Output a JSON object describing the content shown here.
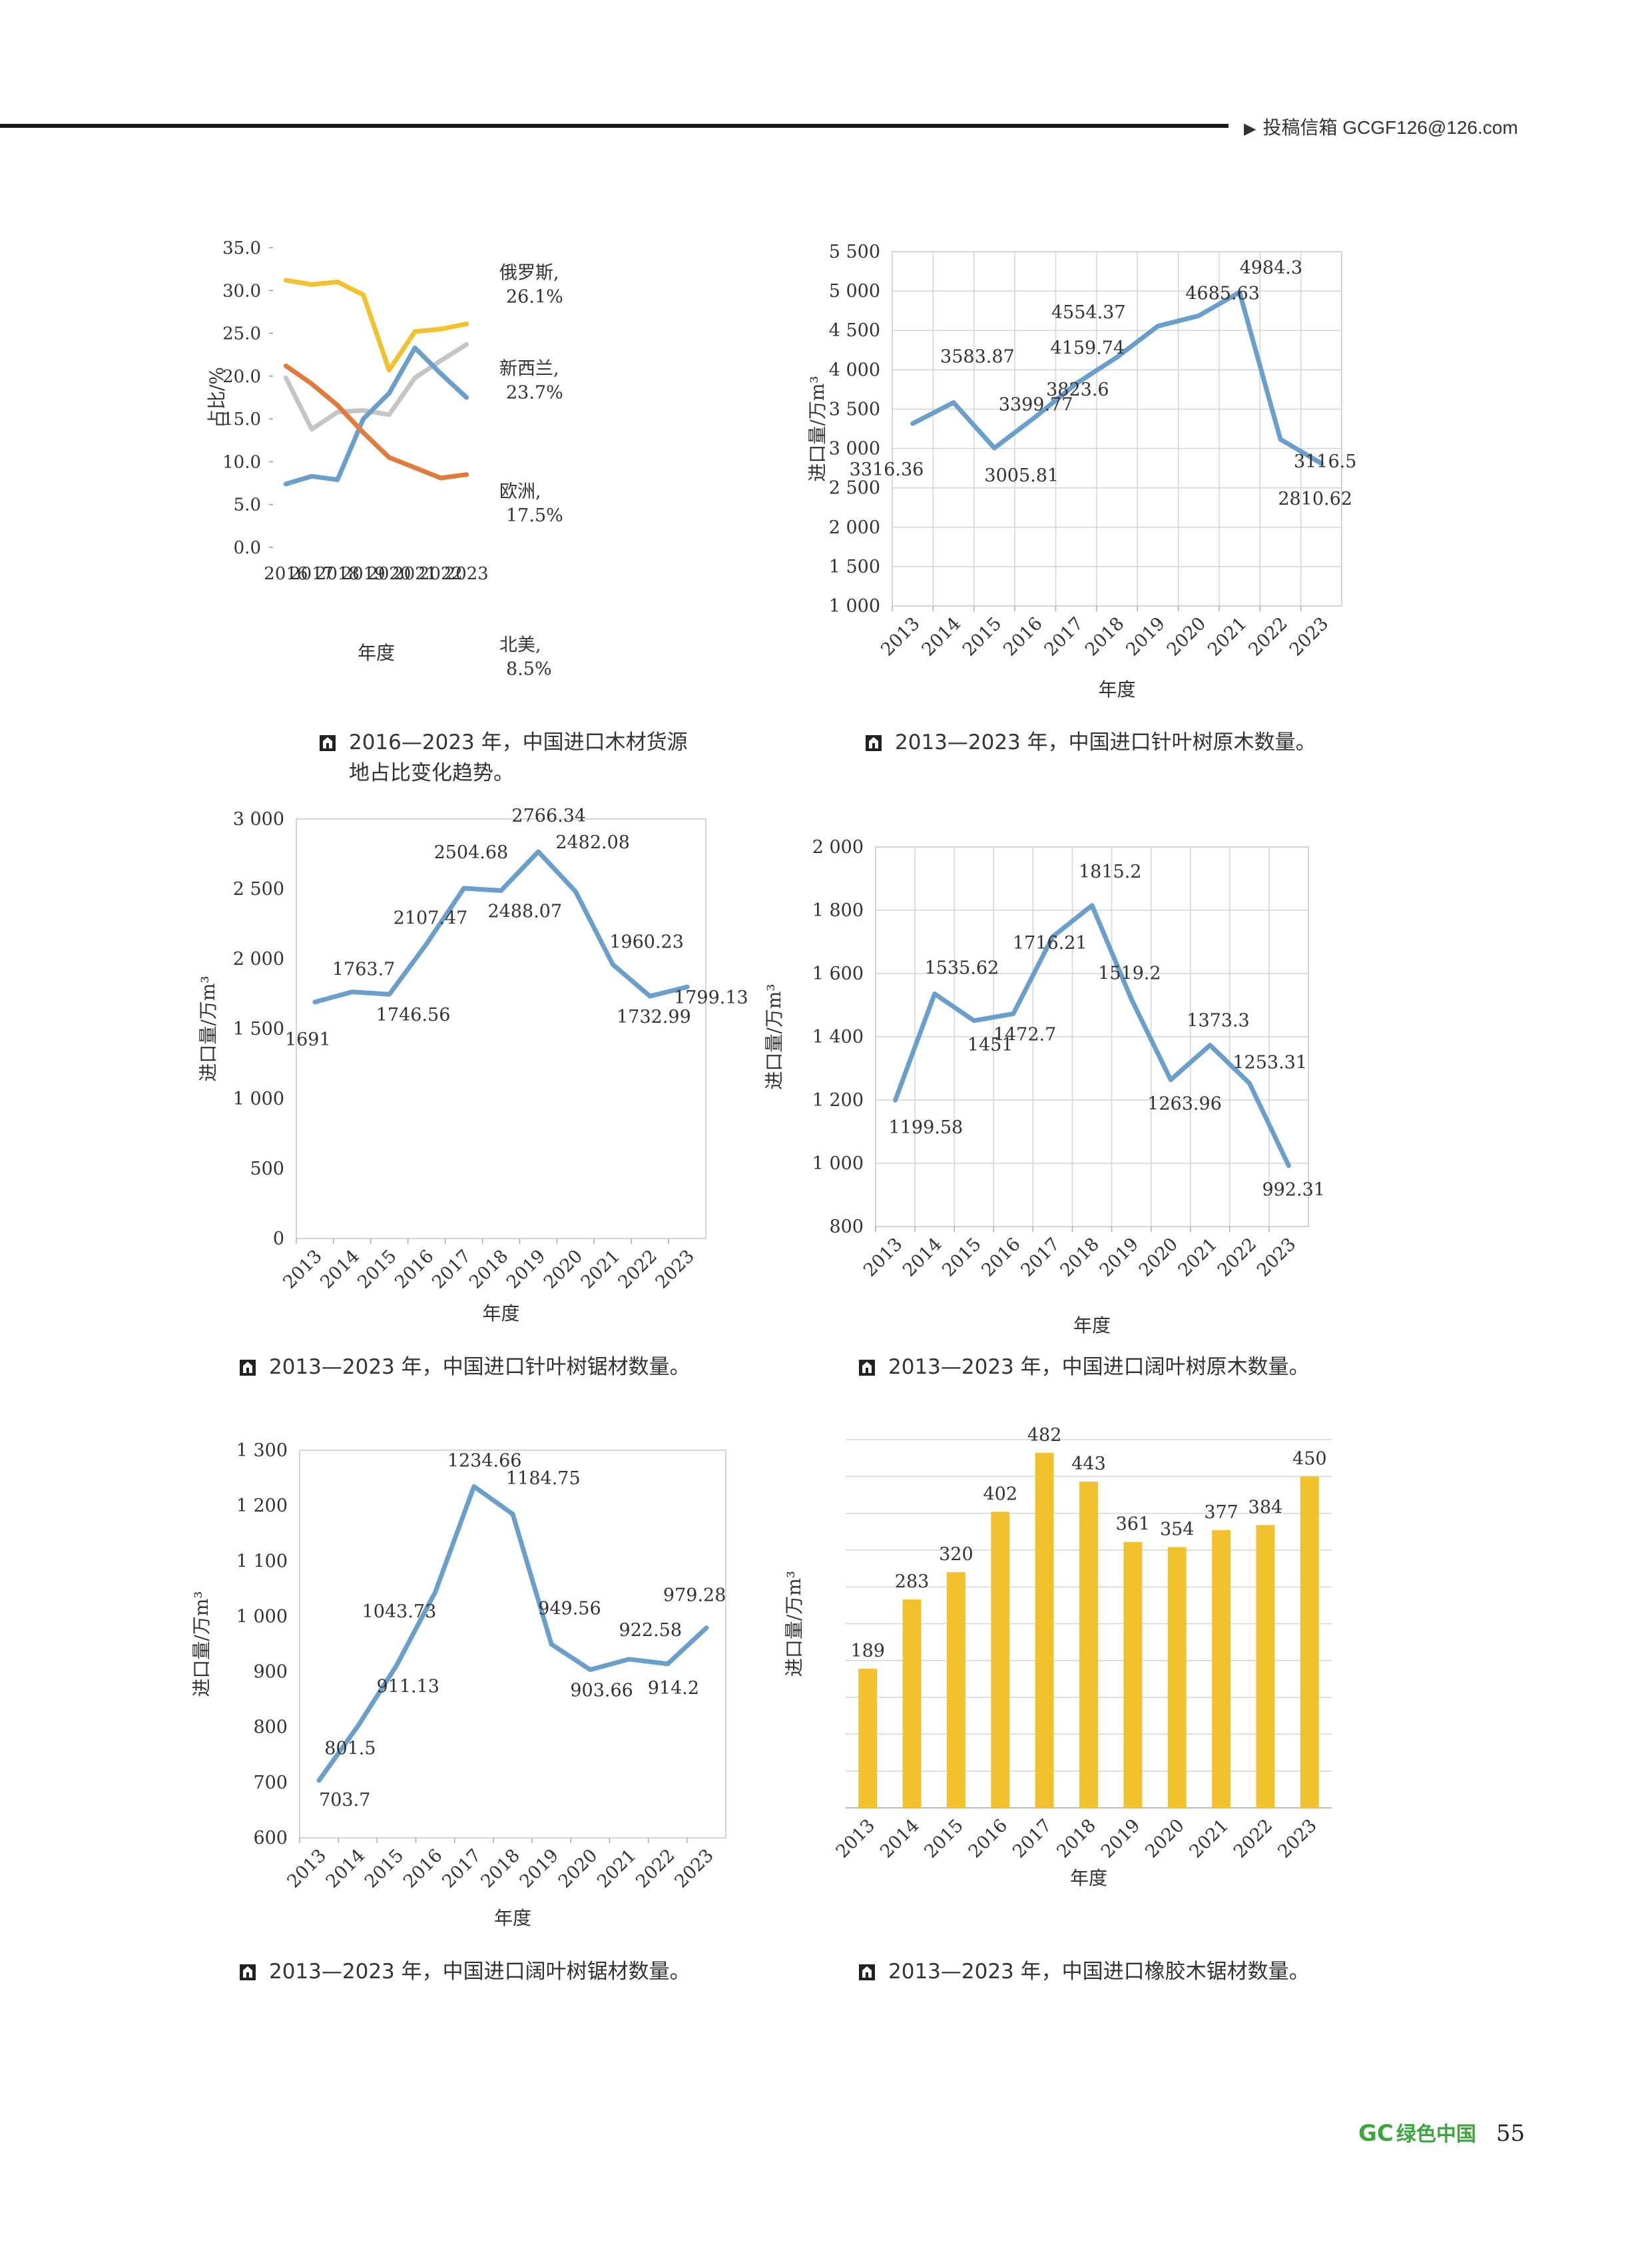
{
  "header": {
    "contact": "投稿信箱 GCGF126@126.com"
  },
  "footer": {
    "logo": "GC",
    "magazine": "绿色中国",
    "page_number": "55"
  },
  "colors": {
    "blue": "#6a9fcb",
    "orange": "#e07b3d",
    "gray": "#c5c5c5",
    "yellow": "#f2c12e",
    "bar": "#f2c12e",
    "grid": "#d4d4d4"
  },
  "chart_data": [
    {
      "type": "line",
      "caption_lines": [
        "2016—2023 年，中国进口木材货源",
        "地占比变化趋势。"
      ],
      "x": [
        "2016",
        "2017",
        "2018",
        "2019",
        "2020",
        "2021",
        "2022",
        "2023"
      ],
      "xlabel": "年度",
      "ylabel": "占比/%",
      "ylim": [
        0,
        35
      ],
      "ytick_step": 5,
      "ytick_labels": [
        "0.0",
        "5.0",
        "10.0",
        "15.0",
        "20.0",
        "25.0",
        "30.0",
        "35.0"
      ],
      "grid": false,
      "series": [
        {
          "name": "俄罗斯",
          "end_label": "26.1%",
          "color": "#f2c12e",
          "values": [
            31.2,
            30.7,
            31.0,
            29.5,
            20.7,
            25.2,
            25.5,
            26.1
          ]
        },
        {
          "name": "新西兰",
          "end_label": "23.7%",
          "color": "#c5c5c5",
          "values": [
            19.8,
            13.8,
            15.8,
            16.0,
            15.5,
            19.8,
            21.8,
            23.7
          ]
        },
        {
          "name": "欧洲",
          "end_label": "17.5%",
          "color": "#6a9fcb",
          "values": [
            7.4,
            8.3,
            7.9,
            15.0,
            18.0,
            23.3,
            20.3,
            17.5
          ]
        },
        {
          "name": "北美",
          "end_label": "8.5%",
          "color": "#e07b3d",
          "values": [
            21.2,
            19.1,
            16.6,
            13.4,
            10.5,
            9.3,
            8.1,
            8.5
          ]
        }
      ]
    },
    {
      "type": "line",
      "caption_lines": [
        "2013—2023 年，中国进口针叶树原木数量。"
      ],
      "x": [
        "2013",
        "2014",
        "2015",
        "2016",
        "2017",
        "2018",
        "2019",
        "2020",
        "2021",
        "2022",
        "2023"
      ],
      "xlabel": "年度",
      "ylabel": "进口量/万m³",
      "ylim": [
        1000,
        5500
      ],
      "ytick_step": 500,
      "ytick_labels": [
        "1 000",
        "1 500",
        "2 000",
        "2 500",
        "3 000",
        "3 500",
        "4 000",
        "4 500",
        "5 000",
        "5 500"
      ],
      "grid": true,
      "series": [
        {
          "color": "#6a9fcb",
          "values": [
            3316.36,
            3583.87,
            3005.81,
            3399.77,
            3823.6,
            4159.74,
            4554.37,
            4685.63,
            4984.3,
            3116.5,
            2810.62
          ],
          "labels": [
            "3316.36",
            "3583.87",
            "3005.81",
            "3399.77",
            "3823.6",
            "4159.74",
            "4554.37",
            "4685.63",
            "4984.3",
            "3116.5",
            "2810.62"
          ]
        }
      ]
    },
    {
      "type": "line",
      "caption_lines": [
        "2013—2023 年，中国进口针叶树锯材数量。"
      ],
      "x": [
        "2013",
        "2014",
        "2015",
        "2016",
        "2017",
        "2018",
        "2019",
        "2020",
        "2021",
        "2022",
        "2023"
      ],
      "xlabel": "年度",
      "ylabel": "进口量/万m³",
      "ylim": [
        0,
        3000
      ],
      "ytick_step": 500,
      "ytick_labels": [
        "0",
        "500",
        "1 000",
        "1 500",
        "2 000",
        "2 500",
        "3 000"
      ],
      "grid": false,
      "series": [
        {
          "color": "#6a9fcb",
          "values": [
            1691,
            1763.7,
            1746.56,
            2107.47,
            2504.68,
            2488.07,
            2766.34,
            2482.08,
            1960.23,
            1732.99,
            1799.13
          ],
          "labels": [
            "1691",
            "1763.7",
            "1746.56",
            "2107.47",
            "2504.68",
            "2488.07",
            "2766.34",
            "2482.08",
            "1960.23",
            "1732.99",
            "1799.13"
          ]
        }
      ]
    },
    {
      "type": "line",
      "caption_lines": [
        "2013—2023 年，中国进口阔叶树原木数量。"
      ],
      "x": [
        "2013",
        "2014",
        "2015",
        "2016",
        "2017",
        "2018",
        "2019",
        "2020",
        "2021",
        "2022",
        "2023"
      ],
      "xlabel": "年度",
      "ylabel": "进口量/万m³",
      "ylim": [
        800,
        2000
      ],
      "ytick_step": 200,
      "ytick_labels": [
        "800",
        "1 000",
        "1 200",
        "1 400",
        "1 600",
        "1 800",
        "2 000"
      ],
      "grid": true,
      "series": [
        {
          "color": "#6a9fcb",
          "values": [
            1199.58,
            1535.62,
            1451,
            1472.7,
            1716.21,
            1815.2,
            1519.2,
            1263.96,
            1373.3,
            1253.31,
            992.31
          ],
          "labels": [
            "1199.58",
            "1535.62",
            "1451",
            "1472.7",
            "1716.21",
            "1815.2",
            "1519.2",
            "1263.96",
            "1373.3",
            "1253.31",
            "992.31"
          ]
        }
      ]
    },
    {
      "type": "line",
      "caption_lines": [
        "2013—2023 年，中国进口阔叶树锯材数量。"
      ],
      "x": [
        "2013",
        "2014",
        "2015",
        "2016",
        "2017",
        "2018",
        "2019",
        "2020",
        "2021",
        "2022",
        "2023"
      ],
      "xlabel": "年度",
      "ylabel": "进口量/万m³",
      "ylim": [
        600,
        1300
      ],
      "ytick_step": 100,
      "ytick_labels": [
        "600",
        "700",
        "800",
        "900",
        "1 000",
        "1 100",
        "1 200",
        "1 300"
      ],
      "grid": false,
      "series": [
        {
          "color": "#6a9fcb",
          "values": [
            703.7,
            801.5,
            911.13,
            1043.73,
            1234.66,
            1184.75,
            949.56,
            903.66,
            922.58,
            914.2,
            979.28
          ],
          "labels": [
            "703.7",
            "801.5",
            "911.13",
            "1043.73",
            "1234.66",
            "1184.75",
            "949.56",
            "903.66",
            "922.58",
            "914.2",
            "979.28"
          ]
        }
      ]
    },
    {
      "type": "bar",
      "caption_lines": [
        "2013—2023 年，中国进口橡胶木锯材数量。"
      ],
      "categories": [
        "2013",
        "2014",
        "2015",
        "2016",
        "2017",
        "2018",
        "2019",
        "2020",
        "2021",
        "2022",
        "2023"
      ],
      "xlabel": "年度",
      "ylabel": "进口量/万m³",
      "ylim": [
        0,
        500
      ],
      "grid": true,
      "color": "#f2c12e",
      "values": [
        189,
        283,
        320,
        402,
        482,
        443,
        361,
        354,
        377,
        384,
        450
      ],
      "labels": [
        "189",
        "283",
        "320",
        "402",
        "482",
        "443",
        "361",
        "354",
        "377",
        "384",
        "450"
      ]
    }
  ]
}
